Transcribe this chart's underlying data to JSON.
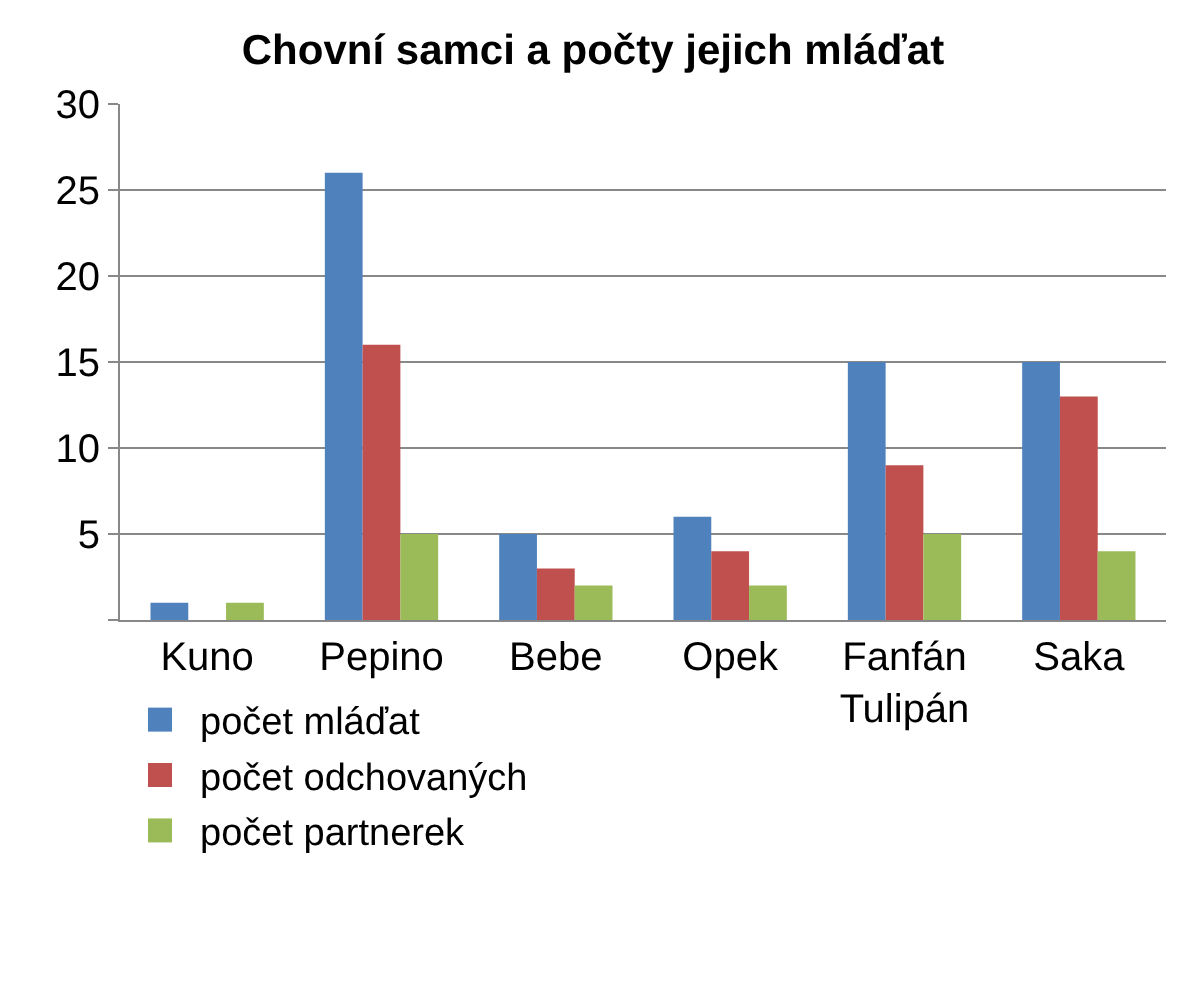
{
  "chart_data": {
    "type": "bar",
    "title": "Chovní samci a počty jejich mláďat",
    "categories": [
      "Kuno",
      "Pepino",
      "Bebe",
      "Opek",
      "Fanfán Tulipán",
      "Saka"
    ],
    "series": [
      {
        "name": "počet mláďat",
        "color": "#4f81bd",
        "values": [
          1,
          26,
          5,
          6,
          15,
          15
        ]
      },
      {
        "name": "počet odchovaných",
        "color": "#c0504d",
        "values": [
          0,
          16,
          3,
          4,
          9,
          13
        ]
      },
      {
        "name": "počet partnerek",
        "color": "#9bbb59",
        "values": [
          1,
          5,
          2,
          2,
          5,
          4
        ]
      }
    ],
    "ylim": [
      0,
      30
    ],
    "yticks": [
      {
        "value": 0,
        "label": null
      },
      5,
      10,
      15,
      20,
      25,
      30
    ],
    "grid": "y",
    "legend": "bottom"
  }
}
